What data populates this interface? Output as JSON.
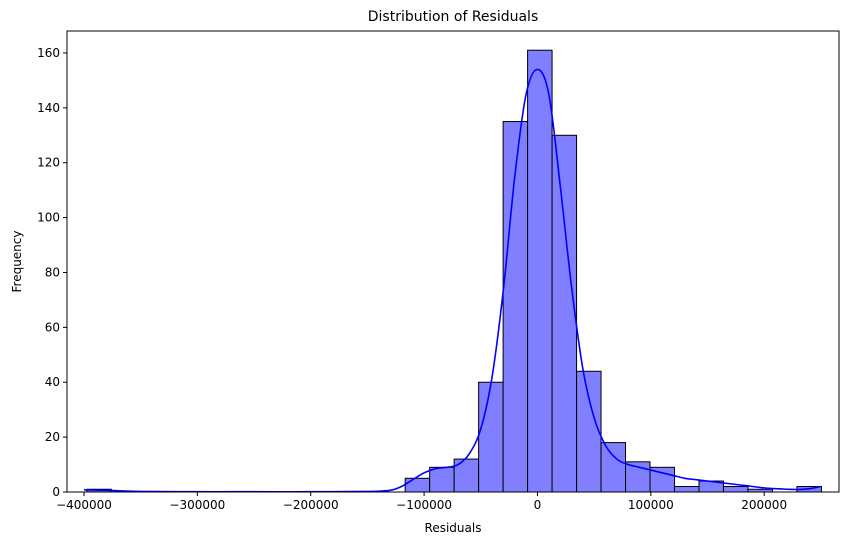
{
  "chart_data": {
    "type": "bar",
    "title": "Distribution of Residuals",
    "xlabel": "Residuals",
    "ylabel": "Frequency",
    "xlim": [
      -415000,
      266000
    ],
    "ylim": [
      0,
      168
    ],
    "x_ticks": [
      -400000,
      -300000,
      -200000,
      -100000,
      0,
      100000,
      200000
    ],
    "x_tick_labels": [
      "−400000",
      "−300000",
      "−200000",
      "−100000",
      "0",
      "100000",
      "200000"
    ],
    "y_ticks": [
      0,
      20,
      40,
      60,
      80,
      100,
      120,
      140,
      160
    ],
    "y_tick_labels": [
      "0",
      "20",
      "40",
      "60",
      "80",
      "100",
      "120",
      "140",
      "160"
    ],
    "bins": {
      "start": -397500,
      "width": 21600,
      "counts": [
        1,
        0,
        0,
        0,
        0,
        0,
        0,
        0,
        0,
        0,
        0,
        0,
        0,
        5,
        9,
        12,
        40,
        135,
        161,
        130,
        44,
        18,
        11,
        9,
        2,
        4,
        2,
        1,
        0,
        2
      ]
    },
    "kde": {
      "x": [
        -400000,
        -380000,
        -350000,
        -300000,
        -250000,
        -200000,
        -150000,
        -130000,
        -120000,
        -110000,
        -100000,
        -90000,
        -80000,
        -70000,
        -60000,
        -50000,
        -40000,
        -30000,
        -20000,
        -10000,
        0,
        10000,
        20000,
        30000,
        40000,
        50000,
        60000,
        70000,
        80000,
        90000,
        100000,
        110000,
        120000,
        130000,
        140000,
        150000,
        160000,
        170000,
        180000,
        190000,
        200000,
        210000,
        220000,
        230000,
        240000,
        250000
      ],
      "y": [
        0.8,
        0.6,
        0.2,
        0.1,
        0.1,
        0.1,
        0.2,
        0.6,
        2,
        4.5,
        7,
        8.5,
        9,
        10,
        14,
        23,
        42,
        74,
        115,
        145,
        154,
        145,
        112,
        75,
        45,
        27,
        17,
        12,
        10,
        9,
        8,
        7,
        6,
        5,
        4.5,
        4,
        3.5,
        3,
        2.5,
        2,
        1.5,
        1.2,
        1.0,
        0.9,
        1.2,
        2
      ]
    },
    "bar_color": "#7f7fff",
    "bar_edge_color": "#000000",
    "line_color": "#0000ff",
    "grid": false,
    "legend": null
  }
}
